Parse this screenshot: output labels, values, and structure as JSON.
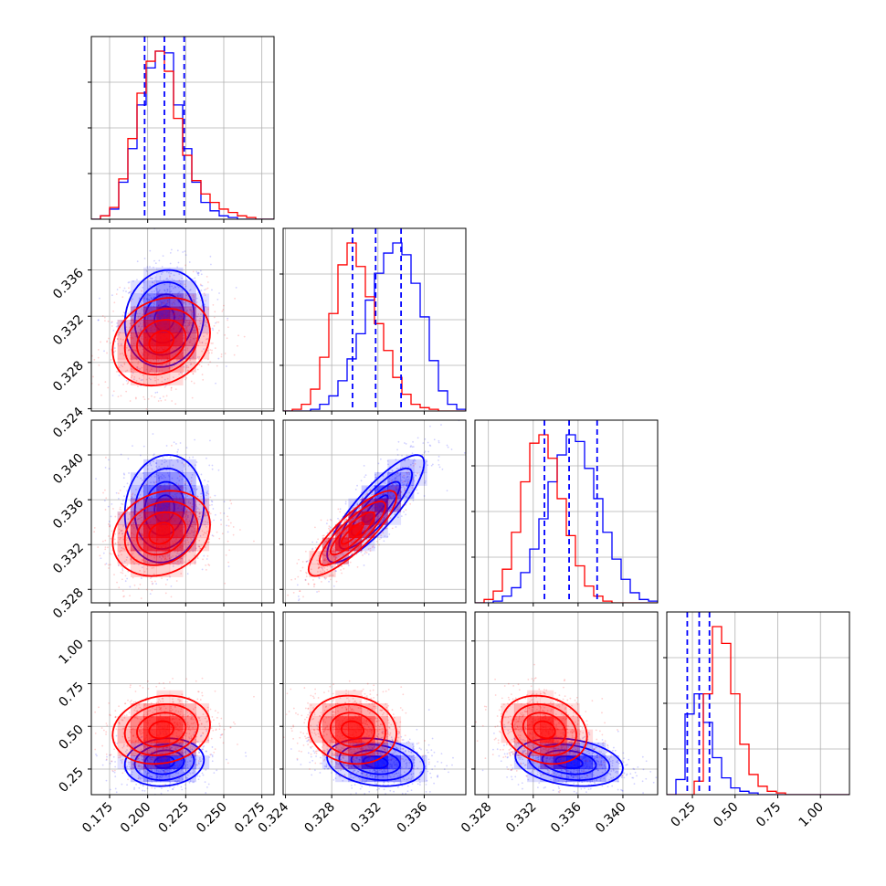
{
  "chart_data": {
    "type": "corner",
    "grid": true,
    "series_colors": {
      "series_a": "#0000ff",
      "series_b": "#ff0000"
    },
    "parameters": [
      {
        "range": [
          0.163,
          0.283
        ],
        "ticks": [
          "0.175",
          "0.200",
          "0.225",
          "0.250",
          "0.275"
        ],
        "tick_values": [
          0.175,
          0.2,
          0.225,
          0.25,
          0.275
        ]
      },
      {
        "range": [
          0.3238,
          0.3396
        ],
        "ticks": [
          "0.324",
          "0.328",
          "0.332",
          "0.336"
        ],
        "tick_values": [
          0.324,
          0.328,
          0.332,
          0.336
        ]
      },
      {
        "range": [
          0.3268,
          0.3431
        ],
        "ticks": [
          "0.328",
          "0.332",
          "0.336",
          "0.340"
        ],
        "tick_values": [
          0.328,
          0.332,
          0.336,
          0.34
        ]
      },
      {
        "range": [
          0.1,
          1.17
        ],
        "ticks": [
          "0.25",
          "0.50",
          "0.75",
          "1.00"
        ],
        "tick_values": [
          0.25,
          0.5,
          0.75,
          1.0
        ]
      }
    ],
    "quantile_lines": [
      [
        0.198,
        0.211,
        0.224
      ],
      [
        0.3298,
        0.3318,
        0.334
      ],
      [
        0.333,
        0.3352,
        0.3377
      ],
      [
        0.22,
        0.29,
        0.35
      ]
    ],
    "histograms": [
      {
        "series_a": [
          0,
          0.02,
          0.06,
          0.22,
          0.42,
          0.68,
          0.9,
          1.0,
          0.99,
          0.68,
          0.42,
          0.22,
          0.1,
          0.05,
          0.02,
          0.01,
          0,
          0,
          0,
          0
        ],
        "series_b": [
          0,
          0.02,
          0.07,
          0.24,
          0.48,
          0.75,
          0.94,
          1.0,
          0.88,
          0.6,
          0.38,
          0.23,
          0.15,
          0.1,
          0.06,
          0.04,
          0.02,
          0.01,
          0,
          0
        ]
      },
      {
        "series_a": [
          0,
          0,
          0,
          0.01,
          0.04,
          0.09,
          0.18,
          0.31,
          0.46,
          0.66,
          0.82,
          0.94,
          1.0,
          0.93,
          0.76,
          0.56,
          0.3,
          0.12,
          0.04,
          0.01
        ],
        "series_b": [
          0,
          0.01,
          0.04,
          0.13,
          0.32,
          0.58,
          0.87,
          1.0,
          0.86,
          0.68,
          0.52,
          0.36,
          0.2,
          0.1,
          0.04,
          0.02,
          0.01,
          0,
          0,
          0
        ]
      },
      {
        "series_a": [
          0,
          0,
          0.01,
          0.04,
          0.09,
          0.18,
          0.32,
          0.5,
          0.72,
          0.88,
          1.0,
          0.96,
          0.8,
          0.62,
          0.42,
          0.26,
          0.14,
          0.06,
          0.02,
          0.01
        ],
        "series_b": [
          0,
          0.02,
          0.07,
          0.2,
          0.42,
          0.72,
          0.95,
          1.0,
          0.86,
          0.62,
          0.4,
          0.22,
          0.1,
          0.04,
          0.01,
          0,
          0,
          0,
          0,
          0
        ]
      },
      {
        "series_a": [
          0,
          0.09,
          0.48,
          0.6,
          0.43,
          0.22,
          0.1,
          0.04,
          0.02,
          0.01,
          0,
          0,
          0,
          0,
          0,
          0,
          0,
          0,
          0,
          0
        ],
        "series_b": [
          0,
          0,
          0,
          0.08,
          0.6,
          1.0,
          0.9,
          0.6,
          0.3,
          0.12,
          0.05,
          0.02,
          0.01,
          0,
          0,
          0,
          0,
          0,
          0,
          0
        ]
      }
    ],
    "distributions": {
      "series_a": {
        "mean": [
          0.211,
          0.3318,
          0.3352,
          0.29
        ],
        "std": [
          0.013,
          0.0021,
          0.0024,
          0.07
        ]
      },
      "series_b": {
        "mean": [
          0.209,
          0.3298,
          0.333,
          0.48
        ],
        "std": [
          0.016,
          0.0019,
          0.0019,
          0.1
        ]
      }
    }
  }
}
